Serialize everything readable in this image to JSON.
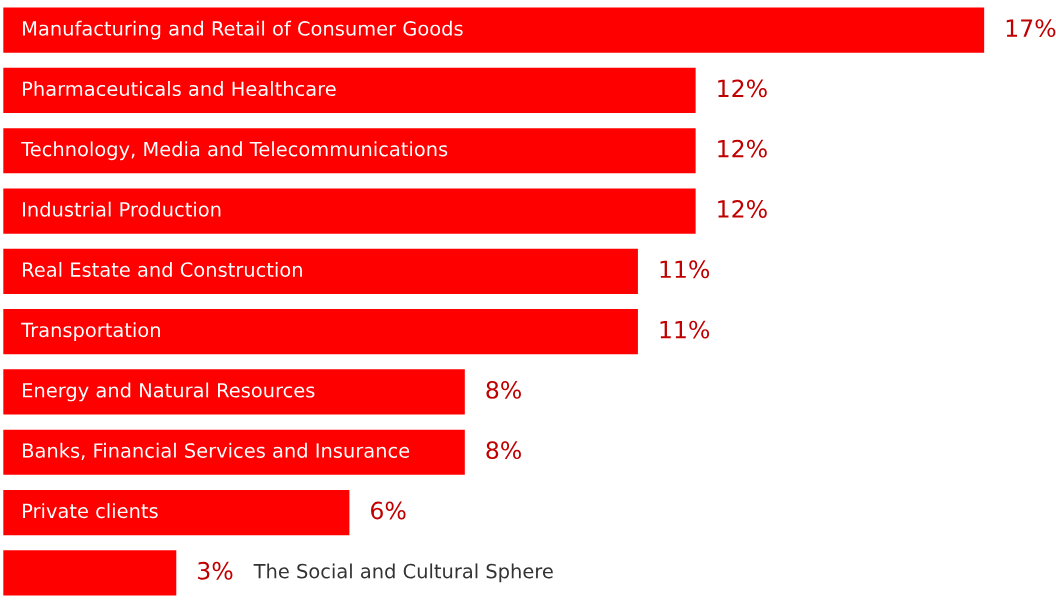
{
  "chart_data": {
    "type": "bar",
    "orientation": "horizontal",
    "data_labels": true,
    "categories": [
      "Manufacturing and Retail of Consumer Goods",
      "Pharmaceuticals and Healthcare",
      "Technology, Media and Telecommunications",
      "Industrial Production",
      "Real Estate and Construction",
      "Transportation",
      "Energy and Natural Resources",
      "Banks, Financial Services and Insurance",
      "Private clients",
      "The Social and Cultural Sphere"
    ],
    "values": [
      17,
      12,
      12,
      12,
      11,
      11,
      8,
      8,
      6,
      3
    ],
    "value_labels": [
      "17%",
      "12%",
      "12%",
      "12%",
      "11%",
      "11%",
      "8%",
      "8%",
      "6%",
      "3%"
    ],
    "color": "#ff0000"
  }
}
